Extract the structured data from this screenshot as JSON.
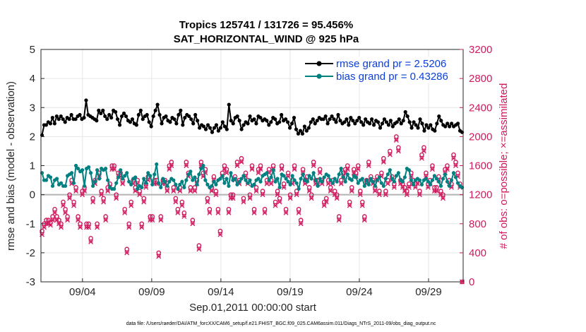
{
  "chart_data": {
    "type": "line",
    "title": "Tropics 125741 / 131726 = 95.456%",
    "subtitle": "SAT_HORIZONTAL_WIND @ 925 hPa",
    "xlabel": "Sep.01,2011 00:00:00 start",
    "ylabel": "rmse and bias (model - observation)",
    "ylabel_right": "# of obs: o=possible; ×=assimilated",
    "footnote": "data file: /Users/raeder/DAI/ATM_forcXX/CAM6_setup/f.e21.FHIST_BGC.f09_025.CAM6assim.011/Diags_NTrS_2011-09/obs_diag_output.nc",
    "xlim": [
      0,
      30.5
    ],
    "ylim": [
      -3,
      5
    ],
    "ylim_right": [
      0,
      3200
    ],
    "grid": true,
    "legend_position": "top-right",
    "x_tick_values": [
      3,
      8,
      13,
      18,
      23,
      28
    ],
    "x_tick_labels": [
      "09/04",
      "09/09",
      "09/14",
      "09/19",
      "09/24",
      "09/29"
    ],
    "y_ticks": [
      "-3",
      "-2",
      "-1",
      "0",
      "1",
      "2",
      "3",
      "4",
      "5"
    ],
    "y_ticks_right": [
      "0",
      "400",
      "800",
      "1200",
      "1600",
      "2000",
      "2400",
      "2800",
      "3200"
    ],
    "colors": {
      "rmse": "#000000",
      "bias": "#008080",
      "obs": "#d1195e",
      "zero_line": "#b3b3b3"
    },
    "series": [
      {
        "name": "rmse",
        "label": "rmse grand pr = 2.5206",
        "marker": "circle",
        "values": [
          2.05,
          2.4,
          2.4,
          2.5,
          2.45,
          2.65,
          2.45,
          2.7,
          2.6,
          2.7,
          2.6,
          2.5,
          2.65,
          2.6,
          2.75,
          2.6,
          2.6,
          2.7,
          2.75,
          2.6,
          2.65,
          3.25,
          2.75,
          2.7,
          2.65,
          2.6,
          2.55,
          2.9,
          2.8,
          2.9,
          2.7,
          2.6,
          2.75,
          2.65,
          2.9,
          2.85,
          2.6,
          2.4,
          2.7,
          2.8,
          2.7,
          2.55,
          2.5,
          2.6,
          2.45,
          2.4,
          2.75,
          2.9,
          2.6,
          2.7,
          2.75,
          2.5,
          2.35,
          2.7,
          2.9,
          3.1,
          2.75,
          2.45,
          2.65,
          2.7,
          2.55,
          2.5,
          2.65,
          2.6,
          2.45,
          2.75,
          2.9,
          2.4,
          2.65,
          2.75,
          2.7,
          2.6,
          2.45,
          2.75,
          2.55,
          2.3,
          2.4,
          2.35,
          2.25,
          2.4,
          2.3,
          2.15,
          2.3,
          2.4,
          2.2,
          2.3,
          2.5,
          2.35,
          2.25,
          3.1,
          2.55,
          2.45,
          2.65,
          2.7,
          2.55,
          2.25,
          2.4,
          2.5,
          2.45,
          2.7,
          2.55,
          2.6,
          2.45,
          2.7,
          2.65,
          2.55,
          2.6,
          2.55,
          2.4,
          2.5,
          2.65,
          2.6,
          2.45,
          2.5,
          2.75,
          2.55,
          2.6,
          2.5,
          2.3,
          2.45,
          2.65,
          2.25,
          2.1,
          2.2,
          2.1,
          2.35,
          2.2,
          2.3,
          2.5,
          2.6,
          2.45,
          2.55,
          2.65,
          2.6,
          2.6,
          2.7,
          2.45,
          2.6,
          2.7,
          2.6,
          2.5,
          2.75,
          2.55,
          2.45,
          2.5,
          2.6,
          2.4,
          2.65,
          2.55,
          2.45,
          2.55,
          2.65,
          2.5,
          2.4,
          2.6,
          2.5,
          2.45,
          2.6,
          2.4,
          2.55,
          2.5,
          2.3,
          2.45,
          2.6,
          2.5,
          2.4,
          2.55,
          2.35,
          2.45,
          2.5,
          2.6,
          2.45,
          2.55,
          2.85,
          2.7,
          2.5,
          2.3,
          2.5,
          2.4,
          2.3,
          2.6,
          2.45,
          2.2,
          2.4,
          2.3,
          2.4,
          2.25,
          2.2,
          2.45,
          2.7,
          2.55,
          2.4,
          2.35,
          2.45,
          2.35,
          2.45,
          2.35,
          2.4,
          2.45,
          2.2,
          2.15
        ]
      },
      {
        "name": "bias",
        "label": "bias grand pr = 0.43286",
        "marker": "circle",
        "values": [
          0.75,
          0.5,
          0.5,
          0.65,
          0.6,
          0.3,
          0.5,
          0.55,
          0.35,
          0.4,
          0.3,
          0.3,
          0.65,
          0.7,
          0.75,
          0.4,
          1.0,
          0.9,
          0.8,
          0.85,
          0.3,
          0.9,
          0.95,
          0.75,
          0.3,
          0.45,
          0.85,
          0.55,
          0.9,
          0.85,
          0.9,
          0.5,
          0.25,
          0.2,
          0.2,
          0.4,
          0.6,
          0.85,
          0.55,
          0.65,
          0.75,
          0.45,
          0.35,
          0.55,
          0.6,
          0.2,
          0.3,
          0.25,
          0.55,
          0.4,
          0.75,
          0.65,
          0.35,
          0.7,
          1.05,
          0.4,
          0.25,
          0.55,
          0.45,
          0.3,
          0.45,
          0.55,
          0.5,
          0.35,
          0.2,
          0.35,
          0.45,
          0.25,
          0.5,
          0.7,
          0.8,
          0.5,
          0.6,
          0.35,
          0.7,
          0.9,
          1.0,
          0.5,
          0.35,
          0.25,
          0.3,
          0.45,
          0.35,
          0.5,
          0.55,
          0.65,
          0.4,
          0.55,
          0.3,
          0.75,
          0.5,
          0.55,
          0.35,
          0.45,
          0.55,
          0.65,
          0.5,
          0.4,
          0.5,
          0.3,
          0.35,
          0.5,
          0.55,
          0.45,
          0.65,
          0.7,
          0.75,
          0.5,
          0.6,
          0.85,
          0.45,
          0.55,
          0.25,
          0.7,
          0.65,
          0.55,
          0.45,
          0.35,
          0.65,
          0.5,
          0.4,
          0.2,
          0.55,
          0.7,
          0.5,
          0.45,
          0.65,
          0.55,
          0.75,
          0.5,
          0.3,
          0.55,
          0.45,
          0.6,
          0.7,
          0.65,
          0.5,
          0.4,
          0.55,
          0.45,
          0.7,
          0.9,
          0.6,
          0.45,
          0.7,
          0.55,
          0.5,
          0.65,
          0.6,
          0.4,
          0.5,
          0.55,
          0.3,
          0.5,
          0.35,
          0.55,
          0.45,
          0.3,
          0.5,
          0.6,
          0.4,
          0.3,
          0.55,
          0.7,
          0.85,
          0.55,
          0.45,
          0.65,
          0.75,
          0.5,
          0.45,
          0.6,
          0.9,
          0.85,
          0.5,
          0.35,
          0.5,
          0.55,
          0.5,
          0.35,
          0.5,
          0.55,
          0.45,
          0.35,
          0.5,
          0.65,
          0.55,
          0.45,
          0.3,
          0.55,
          0.7,
          0.45,
          0.3,
          0.5,
          0.75,
          0.6,
          0.4,
          0.3,
          0.25
        ]
      }
    ],
    "obs_possible": [
      700,
      800,
      850,
      850,
      820,
      900,
      1000,
      900,
      850,
      800,
      1100,
      1000,
      900,
      1200,
      1400,
      1100,
      1300,
      900,
      800,
      1250,
      1300,
      800,
      800,
      600,
      1150,
      1400,
      800,
      1500,
      1250,
      1150,
      900,
      1300,
      1350,
      1600,
      1600,
      1200,
      1500,
      1500,
      1400,
      1000,
      450,
      800,
      1100,
      1400,
      1300,
      1400,
      1250,
      800,
      1150,
      1350,
      1450,
      900,
      900,
      1400,
      1400,
      400,
      900,
      1400,
      1400,
      1300,
      1600,
      1650,
      1300,
      1150,
      1000,
      1300,
      1100,
      950,
      1650,
      1500,
      1300,
      850,
      1300,
      1400,
      500,
      1650,
      1500,
      1550,
      1150,
      1000,
      1300,
      1450,
      1250,
      1000,
      700,
      1500,
      1600,
      1550,
      1000,
      1200,
      1200,
      1450,
      1650,
      1400,
      1700,
      1150,
      1500,
      1400,
      1200,
      1600,
      1000,
      1300,
      1550,
      1600,
      1250,
      1000,
      1400,
      1550,
      1400,
      1600,
      1100,
      1250,
      1150,
      1600,
      1350,
      1000,
      1500,
      1200,
      1400,
      1600,
      1250,
      1000,
      850,
      1550,
      1400,
      1450,
      1300,
      1200,
      1650,
      1400,
      1400,
      1550,
      1400,
      1100,
      1150,
      1400,
      1300,
      1400,
      1250,
      1200,
      900,
      1400,
      1500,
      1550,
      1600,
      1100,
      1300,
      1550,
      1500,
      1600,
      1250,
      1100,
      900,
      1400,
      1650,
      1450,
      1400,
      1300,
      1450,
      1250,
      1500,
      1700,
      1250,
      1400,
      1800,
      1450,
      1350,
      2000,
      1850,
      1400,
      1350,
      1300,
      1250,
      1350,
      1500,
      1400,
      1350,
      1400,
      1250,
      1750,
      1850,
      1500,
      1350,
      1400,
      1600,
      1300,
      1300,
      1450,
      1250,
      1200,
      1550,
      1600,
      1400,
      1350,
      1750,
      1650,
      1500,
      1350,
      0
    ],
    "obs_assimilated": [
      650,
      750,
      800,
      800,
      780,
      850,
      950,
      850,
      800,
      750,
      1050,
      950,
      850,
      1150,
      1350,
      1050,
      1250,
      850,
      750,
      1200,
      1250,
      750,
      750,
      550,
      1100,
      1350,
      750,
      1450,
      1200,
      1100,
      850,
      1250,
      1300,
      1550,
      1550,
      1150,
      1450,
      1450,
      1350,
      950,
      400,
      750,
      1050,
      1350,
      1250,
      1350,
      1200,
      750,
      1100,
      1300,
      1400,
      850,
      850,
      1350,
      1350,
      350,
      850,
      1350,
      1350,
      1250,
      1550,
      1600,
      1250,
      1100,
      950,
      1250,
      1050,
      900,
      1600,
      1450,
      1250,
      800,
      1250,
      1350,
      450,
      1600,
      1450,
      1500,
      1100,
      950,
      1250,
      1400,
      1200,
      950,
      650,
      1450,
      1550,
      1500,
      950,
      1150,
      1150,
      1400,
      1600,
      1350,
      1650,
      1100,
      1450,
      1350,
      1150,
      1550,
      950,
      1250,
      1500,
      1550,
      1200,
      950,
      1350,
      1500,
      1350,
      1550,
      1050,
      1200,
      1100,
      1550,
      1300,
      950,
      1450,
      1150,
      1350,
      1550,
      1200,
      950,
      800,
      1500,
      1350,
      1400,
      1250,
      1150,
      1600,
      1350,
      1350,
      1500,
      1350,
      1050,
      1100,
      1350,
      1250,
      1350,
      1200,
      1150,
      850,
      1350,
      1450,
      1500,
      1550,
      1050,
      1250,
      1500,
      1450,
      1550,
      1200,
      1050,
      850,
      1350,
      1600,
      1400,
      1350,
      1250,
      1400,
      1200,
      1450,
      1650,
      1200,
      1350,
      1750,
      1400,
      1300,
      1950,
      1800,
      1350,
      1300,
      1250,
      1200,
      1300,
      1450,
      1350,
      1300,
      1350,
      1200,
      1700,
      1800,
      1450,
      1300,
      1350,
      1550,
      1250,
      1250,
      1400,
      1200,
      1150,
      1500,
      1550,
      1350,
      1300,
      1700,
      1600,
      1450,
      1300,
      0
    ]
  }
}
